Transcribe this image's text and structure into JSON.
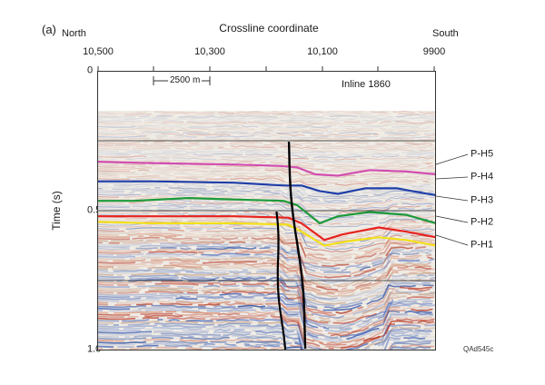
{
  "panel_label": "(a)",
  "xaxis": {
    "title": "Crossline coordinate",
    "left_direction": "North",
    "right_direction": "South",
    "ticks": [
      "10,500",
      "10,300",
      "10,100",
      "9900"
    ]
  },
  "yaxis": {
    "label": "Time (s)",
    "ticks": [
      "0",
      "0.5",
      "1.0"
    ],
    "range": [
      0,
      1.0
    ]
  },
  "section_label": "Inline 1860",
  "scale_bar": "2500 m",
  "horizons": [
    {
      "name": "P-H5",
      "color": "#d14fb0"
    },
    {
      "name": "P-H4",
      "color": "#1f3ea8"
    },
    {
      "name": "P-H3",
      "color": "#1c9a3a"
    },
    {
      "name": "P-H2",
      "color": "#e8231f"
    },
    {
      "name": "P-H1",
      "color": "#f2e01a"
    }
  ],
  "figure_id": "QAd545c"
}
